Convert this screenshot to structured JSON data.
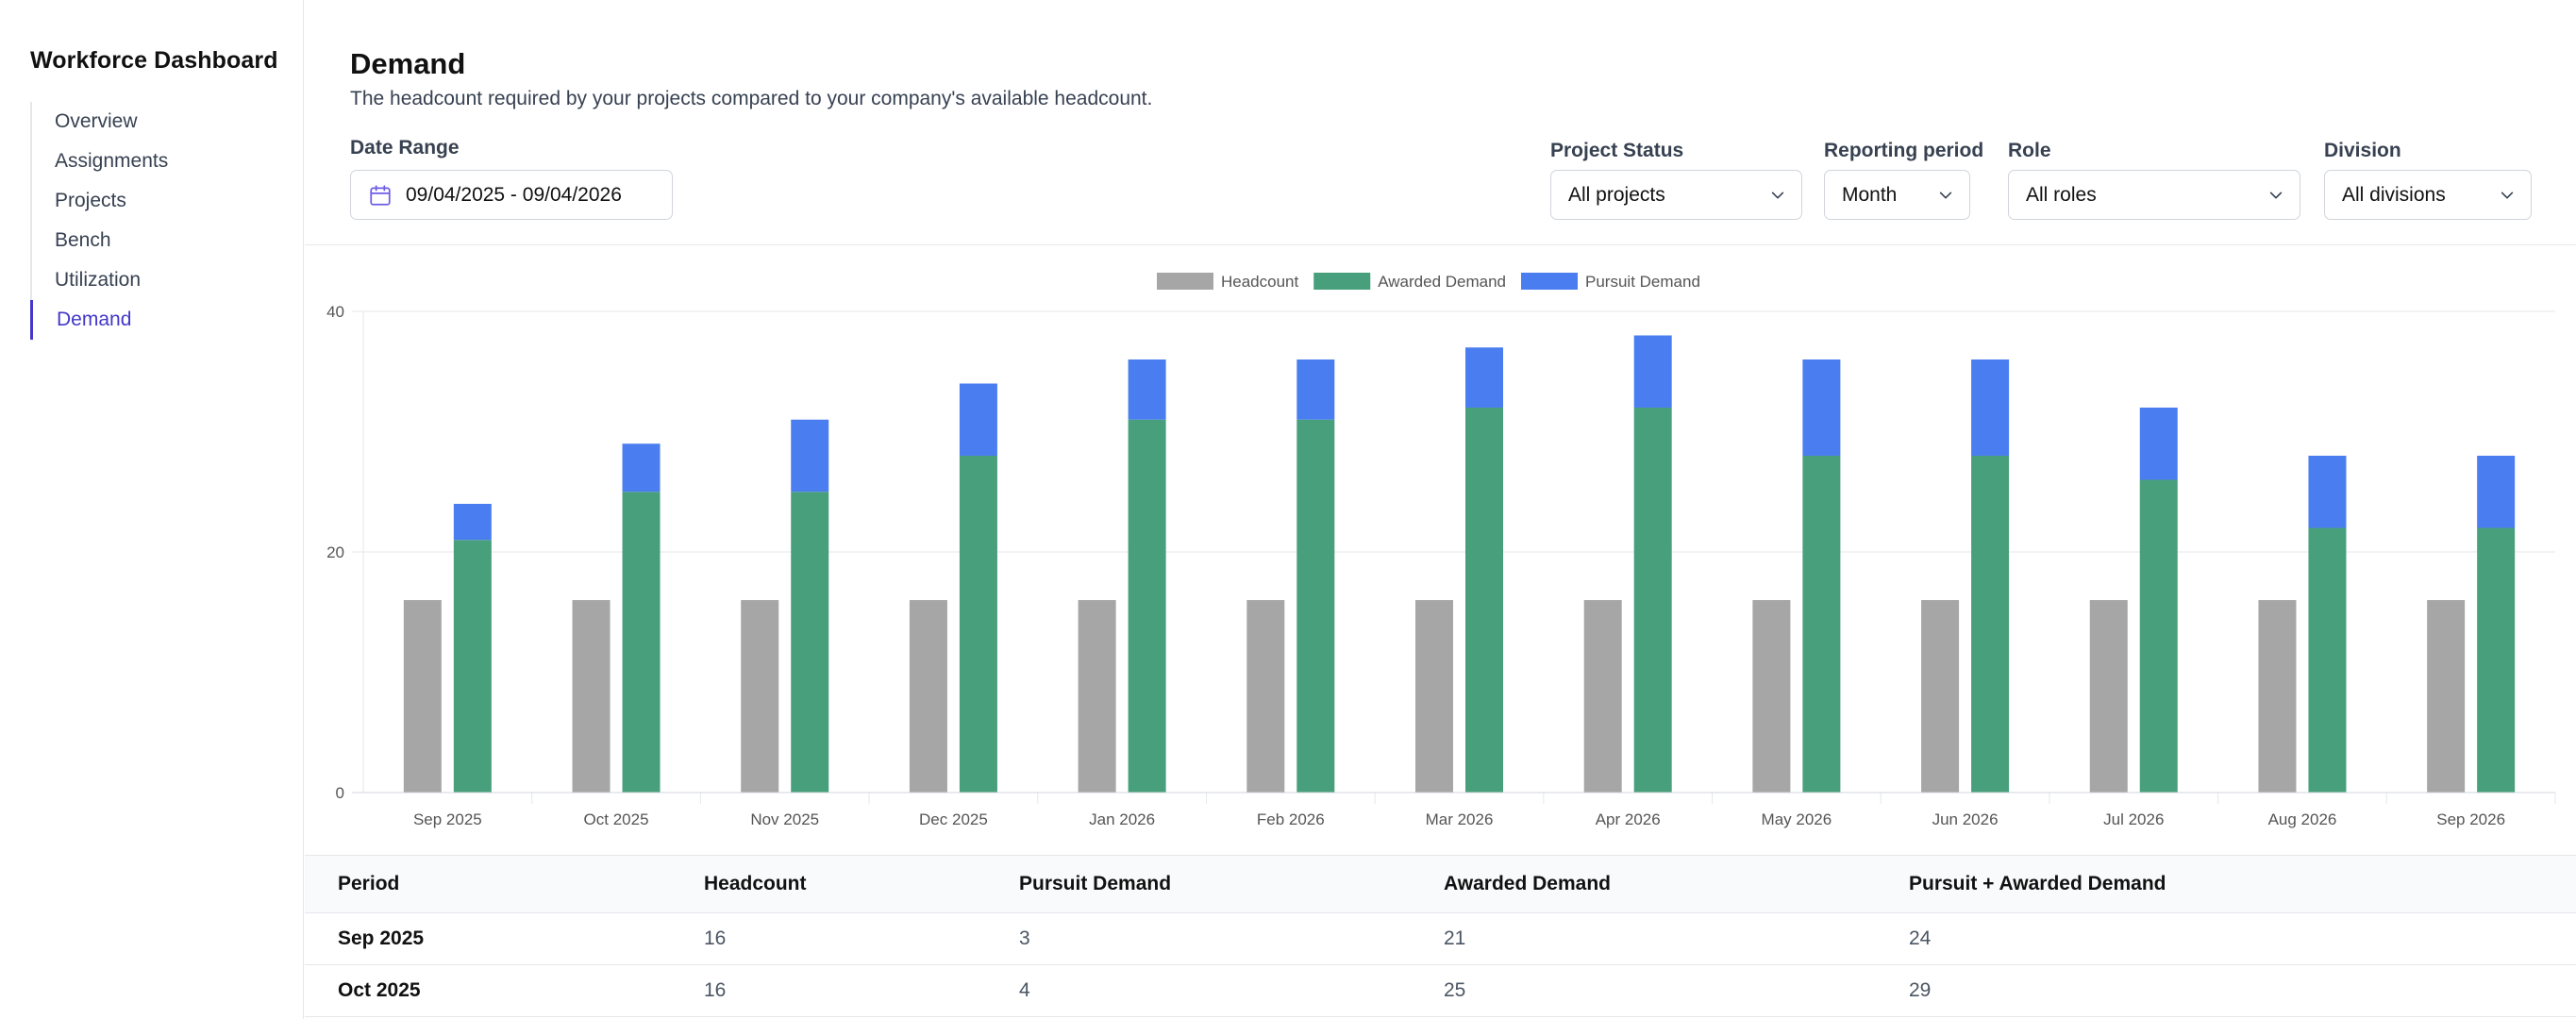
{
  "sidebar": {
    "title": "Workforce Dashboard",
    "items": [
      {
        "label": "Overview"
      },
      {
        "label": "Assignments"
      },
      {
        "label": "Projects"
      },
      {
        "label": "Bench"
      },
      {
        "label": "Utilization"
      },
      {
        "label": "Demand",
        "active": true
      }
    ]
  },
  "header": {
    "title": "Demand",
    "subtitle": "The headcount required by your projects compared to your company's available headcount."
  },
  "filters": {
    "date_range": {
      "label": "Date Range",
      "value": "09/04/2025 - 09/04/2026",
      "icon": "calendar-icon"
    },
    "project_status": {
      "label": "Project Status",
      "value": "All projects"
    },
    "reporting_period": {
      "label": "Reporting period",
      "value": "Month"
    },
    "role": {
      "label": "Role",
      "value": "All roles"
    },
    "division": {
      "label": "Division",
      "value": "All divisions"
    }
  },
  "colors": {
    "headcount": "#a6a6a6",
    "awarded": "#489f7c",
    "pursuit": "#4a7ef0",
    "accent": "#4338ca"
  },
  "chart_data": {
    "type": "bar",
    "stacked": true,
    "categories": [
      "Sep 2025",
      "Oct 2025",
      "Nov 2025",
      "Dec 2025",
      "Jan 2026",
      "Feb 2026",
      "Mar 2026",
      "Apr 2026",
      "May 2026",
      "Jun 2026",
      "Jul 2026",
      "Aug 2026",
      "Sep 2026"
    ],
    "series": [
      {
        "name": "Headcount",
        "stack": "headcount",
        "values": [
          16,
          16,
          16,
          16,
          16,
          16,
          16,
          16,
          16,
          16,
          16,
          16,
          16
        ]
      },
      {
        "name": "Awarded Demand",
        "stack": "demand",
        "values": [
          21,
          25,
          25,
          28,
          31,
          31,
          32,
          32,
          28,
          28,
          26,
          22,
          22
        ]
      },
      {
        "name": "Pursuit Demand",
        "stack": "demand",
        "values": [
          3,
          4,
          6,
          6,
          5,
          5,
          5,
          6,
          8,
          8,
          6,
          6,
          6
        ]
      }
    ],
    "ylim": [
      0,
      40
    ],
    "yticks": [
      0,
      20,
      40
    ],
    "grid": true,
    "legend": "top-center"
  },
  "table": {
    "headers": [
      "Period",
      "Headcount",
      "Pursuit Demand",
      "Awarded Demand",
      "Pursuit + Awarded Demand"
    ],
    "rows": [
      [
        "Sep 2025",
        "16",
        "3",
        "21",
        "24"
      ],
      [
        "Oct 2025",
        "16",
        "4",
        "25",
        "29"
      ]
    ]
  }
}
